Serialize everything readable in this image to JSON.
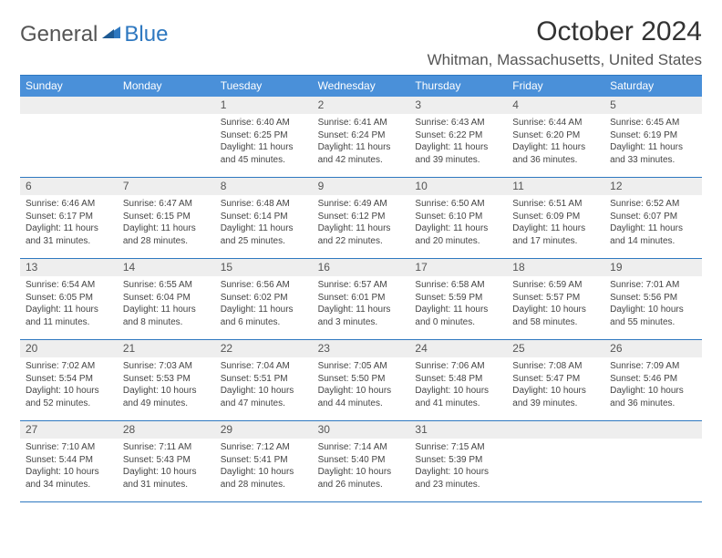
{
  "brand": {
    "part1": "General",
    "part2": "Blue"
  },
  "colors": {
    "accent": "#2e78c0",
    "dow_bg": "#4a90d9",
    "daynum_bg": "#eeeeee",
    "text": "#333333",
    "muted": "#555555"
  },
  "title": "October 2024",
  "location": "Whitman, Massachusetts, United States",
  "dow": [
    "Sunday",
    "Monday",
    "Tuesday",
    "Wednesday",
    "Thursday",
    "Friday",
    "Saturday"
  ],
  "weeks": [
    [
      null,
      null,
      {
        "n": "1",
        "sunrise": "Sunrise: 6:40 AM",
        "sunset": "Sunset: 6:25 PM",
        "daylight1": "Daylight: 11 hours",
        "daylight2": "and 45 minutes."
      },
      {
        "n": "2",
        "sunrise": "Sunrise: 6:41 AM",
        "sunset": "Sunset: 6:24 PM",
        "daylight1": "Daylight: 11 hours",
        "daylight2": "and 42 minutes."
      },
      {
        "n": "3",
        "sunrise": "Sunrise: 6:43 AM",
        "sunset": "Sunset: 6:22 PM",
        "daylight1": "Daylight: 11 hours",
        "daylight2": "and 39 minutes."
      },
      {
        "n": "4",
        "sunrise": "Sunrise: 6:44 AM",
        "sunset": "Sunset: 6:20 PM",
        "daylight1": "Daylight: 11 hours",
        "daylight2": "and 36 minutes."
      },
      {
        "n": "5",
        "sunrise": "Sunrise: 6:45 AM",
        "sunset": "Sunset: 6:19 PM",
        "daylight1": "Daylight: 11 hours",
        "daylight2": "and 33 minutes."
      }
    ],
    [
      {
        "n": "6",
        "sunrise": "Sunrise: 6:46 AM",
        "sunset": "Sunset: 6:17 PM",
        "daylight1": "Daylight: 11 hours",
        "daylight2": "and 31 minutes."
      },
      {
        "n": "7",
        "sunrise": "Sunrise: 6:47 AM",
        "sunset": "Sunset: 6:15 PM",
        "daylight1": "Daylight: 11 hours",
        "daylight2": "and 28 minutes."
      },
      {
        "n": "8",
        "sunrise": "Sunrise: 6:48 AM",
        "sunset": "Sunset: 6:14 PM",
        "daylight1": "Daylight: 11 hours",
        "daylight2": "and 25 minutes."
      },
      {
        "n": "9",
        "sunrise": "Sunrise: 6:49 AM",
        "sunset": "Sunset: 6:12 PM",
        "daylight1": "Daylight: 11 hours",
        "daylight2": "and 22 minutes."
      },
      {
        "n": "10",
        "sunrise": "Sunrise: 6:50 AM",
        "sunset": "Sunset: 6:10 PM",
        "daylight1": "Daylight: 11 hours",
        "daylight2": "and 20 minutes."
      },
      {
        "n": "11",
        "sunrise": "Sunrise: 6:51 AM",
        "sunset": "Sunset: 6:09 PM",
        "daylight1": "Daylight: 11 hours",
        "daylight2": "and 17 minutes."
      },
      {
        "n": "12",
        "sunrise": "Sunrise: 6:52 AM",
        "sunset": "Sunset: 6:07 PM",
        "daylight1": "Daylight: 11 hours",
        "daylight2": "and 14 minutes."
      }
    ],
    [
      {
        "n": "13",
        "sunrise": "Sunrise: 6:54 AM",
        "sunset": "Sunset: 6:05 PM",
        "daylight1": "Daylight: 11 hours",
        "daylight2": "and 11 minutes."
      },
      {
        "n": "14",
        "sunrise": "Sunrise: 6:55 AM",
        "sunset": "Sunset: 6:04 PM",
        "daylight1": "Daylight: 11 hours",
        "daylight2": "and 8 minutes."
      },
      {
        "n": "15",
        "sunrise": "Sunrise: 6:56 AM",
        "sunset": "Sunset: 6:02 PM",
        "daylight1": "Daylight: 11 hours",
        "daylight2": "and 6 minutes."
      },
      {
        "n": "16",
        "sunrise": "Sunrise: 6:57 AM",
        "sunset": "Sunset: 6:01 PM",
        "daylight1": "Daylight: 11 hours",
        "daylight2": "and 3 minutes."
      },
      {
        "n": "17",
        "sunrise": "Sunrise: 6:58 AM",
        "sunset": "Sunset: 5:59 PM",
        "daylight1": "Daylight: 11 hours",
        "daylight2": "and 0 minutes."
      },
      {
        "n": "18",
        "sunrise": "Sunrise: 6:59 AM",
        "sunset": "Sunset: 5:57 PM",
        "daylight1": "Daylight: 10 hours",
        "daylight2": "and 58 minutes."
      },
      {
        "n": "19",
        "sunrise": "Sunrise: 7:01 AM",
        "sunset": "Sunset: 5:56 PM",
        "daylight1": "Daylight: 10 hours",
        "daylight2": "and 55 minutes."
      }
    ],
    [
      {
        "n": "20",
        "sunrise": "Sunrise: 7:02 AM",
        "sunset": "Sunset: 5:54 PM",
        "daylight1": "Daylight: 10 hours",
        "daylight2": "and 52 minutes."
      },
      {
        "n": "21",
        "sunrise": "Sunrise: 7:03 AM",
        "sunset": "Sunset: 5:53 PM",
        "daylight1": "Daylight: 10 hours",
        "daylight2": "and 49 minutes."
      },
      {
        "n": "22",
        "sunrise": "Sunrise: 7:04 AM",
        "sunset": "Sunset: 5:51 PM",
        "daylight1": "Daylight: 10 hours",
        "daylight2": "and 47 minutes."
      },
      {
        "n": "23",
        "sunrise": "Sunrise: 7:05 AM",
        "sunset": "Sunset: 5:50 PM",
        "daylight1": "Daylight: 10 hours",
        "daylight2": "and 44 minutes."
      },
      {
        "n": "24",
        "sunrise": "Sunrise: 7:06 AM",
        "sunset": "Sunset: 5:48 PM",
        "daylight1": "Daylight: 10 hours",
        "daylight2": "and 41 minutes."
      },
      {
        "n": "25",
        "sunrise": "Sunrise: 7:08 AM",
        "sunset": "Sunset: 5:47 PM",
        "daylight1": "Daylight: 10 hours",
        "daylight2": "and 39 minutes."
      },
      {
        "n": "26",
        "sunrise": "Sunrise: 7:09 AM",
        "sunset": "Sunset: 5:46 PM",
        "daylight1": "Daylight: 10 hours",
        "daylight2": "and 36 minutes."
      }
    ],
    [
      {
        "n": "27",
        "sunrise": "Sunrise: 7:10 AM",
        "sunset": "Sunset: 5:44 PM",
        "daylight1": "Daylight: 10 hours",
        "daylight2": "and 34 minutes."
      },
      {
        "n": "28",
        "sunrise": "Sunrise: 7:11 AM",
        "sunset": "Sunset: 5:43 PM",
        "daylight1": "Daylight: 10 hours",
        "daylight2": "and 31 minutes."
      },
      {
        "n": "29",
        "sunrise": "Sunrise: 7:12 AM",
        "sunset": "Sunset: 5:41 PM",
        "daylight1": "Daylight: 10 hours",
        "daylight2": "and 28 minutes."
      },
      {
        "n": "30",
        "sunrise": "Sunrise: 7:14 AM",
        "sunset": "Sunset: 5:40 PM",
        "daylight1": "Daylight: 10 hours",
        "daylight2": "and 26 minutes."
      },
      {
        "n": "31",
        "sunrise": "Sunrise: 7:15 AM",
        "sunset": "Sunset: 5:39 PM",
        "daylight1": "Daylight: 10 hours",
        "daylight2": "and 23 minutes."
      },
      null,
      null
    ]
  ]
}
